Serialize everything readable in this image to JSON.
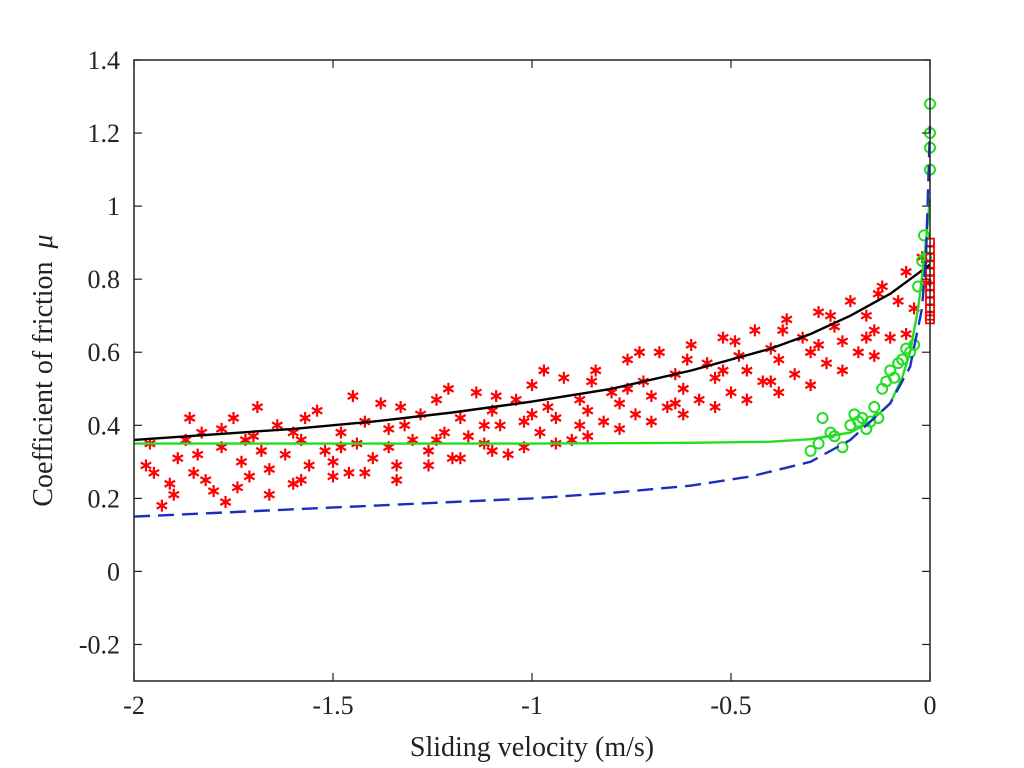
{
  "chart_data": {
    "type": "scatter",
    "xlabel": "Sliding velocity (m/s)",
    "ylabel": "Coefficient of friction",
    "ylabel_symbol": "μ",
    "xlim": [
      -2,
      0
    ],
    "ylim": [
      -0.3,
      1.4
    ],
    "xticks": [
      -2,
      -1.5,
      -1,
      -0.5,
      0
    ],
    "xtick_labels": [
      "-2",
      "-1.5",
      "-1",
      "-0.5",
      "0"
    ],
    "yticks": [
      -0.2,
      0,
      0.2,
      0.4,
      0.6,
      0.8,
      1,
      1.2,
      1.4
    ],
    "ytick_labels": [
      "-0.2",
      "0",
      "0.2",
      "0.4",
      "0.6",
      "0.8",
      "1",
      "1.2",
      "1.4"
    ],
    "grid": false,
    "colors": {
      "red_data": "#ff0000",
      "green_data": "#22dd22",
      "black_curve": "#000000",
      "green_curve": "#22dd22",
      "blue_curve": "#1a2fbf",
      "axes": "#222222"
    },
    "series": [
      {
        "marker": "asterisk",
        "color": "#ff0000",
        "points": [
          [
            -1.97,
            0.29
          ],
          [
            -1.95,
            0.27
          ],
          [
            -1.93,
            0.18
          ],
          [
            -1.91,
            0.24
          ],
          [
            -1.89,
            0.31
          ],
          [
            -1.87,
            0.36
          ],
          [
            -1.85,
            0.27
          ],
          [
            -1.83,
            0.38
          ],
          [
            -1.8,
            0.22
          ],
          [
            -1.78,
            0.34
          ],
          [
            -1.77,
            0.19
          ],
          [
            -1.75,
            0.42
          ],
          [
            -1.73,
            0.3
          ],
          [
            -1.71,
            0.26
          ],
          [
            -1.7,
            0.37
          ],
          [
            -1.68,
            0.33
          ],
          [
            -1.66,
            0.28
          ],
          [
            -1.64,
            0.4
          ],
          [
            -1.62,
            0.32
          ],
          [
            -1.6,
            0.24
          ],
          [
            -1.58,
            0.36
          ],
          [
            -1.56,
            0.29
          ],
          [
            -1.54,
            0.44
          ],
          [
            -1.52,
            0.33
          ],
          [
            -1.5,
            0.3
          ],
          [
            -1.48,
            0.38
          ],
          [
            -1.46,
            0.27
          ],
          [
            -1.44,
            0.35
          ],
          [
            -1.42,
            0.41
          ],
          [
            -1.4,
            0.31
          ],
          [
            -1.38,
            0.46
          ],
          [
            -1.36,
            0.34
          ],
          [
            -1.34,
            0.29
          ],
          [
            -1.32,
            0.4
          ],
          [
            -1.3,
            0.36
          ],
          [
            -1.28,
            0.43
          ],
          [
            -1.26,
            0.33
          ],
          [
            -1.24,
            0.47
          ],
          [
            -1.22,
            0.38
          ],
          [
            -1.2,
            0.31
          ],
          [
            -1.18,
            0.42
          ],
          [
            -1.16,
            0.37
          ],
          [
            -1.14,
            0.49
          ],
          [
            -1.12,
            0.35
          ],
          [
            -1.1,
            0.44
          ],
          [
            -1.08,
            0.4
          ],
          [
            -1.06,
            0.32
          ],
          [
            -1.04,
            0.47
          ],
          [
            -1.02,
            0.41
          ],
          [
            -1.0,
            0.51
          ],
          [
            -0.98,
            0.38
          ],
          [
            -0.96,
            0.45
          ],
          [
            -0.94,
            0.42
          ],
          [
            -0.92,
            0.53
          ],
          [
            -0.9,
            0.36
          ],
          [
            -0.88,
            0.47
          ],
          [
            -0.86,
            0.44
          ],
          [
            -0.84,
            0.55
          ],
          [
            -0.82,
            0.41
          ],
          [
            -0.8,
            0.49
          ],
          [
            -0.78,
            0.46
          ],
          [
            -0.76,
            0.58
          ],
          [
            -0.74,
            0.43
          ],
          [
            -0.72,
            0.52
          ],
          [
            -0.7,
            0.48
          ],
          [
            -0.68,
            0.6
          ],
          [
            -0.66,
            0.45
          ],
          [
            -0.64,
            0.54
          ],
          [
            -0.62,
            0.5
          ],
          [
            -0.6,
            0.62
          ],
          [
            -0.58,
            0.47
          ],
          [
            -0.56,
            0.57
          ],
          [
            -0.54,
            0.53
          ],
          [
            -0.52,
            0.64
          ],
          [
            -0.5,
            0.49
          ],
          [
            -0.48,
            0.59
          ],
          [
            -0.46,
            0.55
          ],
          [
            -0.44,
            0.66
          ],
          [
            -0.42,
            0.52
          ],
          [
            -0.4,
            0.61
          ],
          [
            -0.38,
            0.58
          ],
          [
            -0.36,
            0.69
          ],
          [
            -0.34,
            0.54
          ],
          [
            -0.32,
            0.64
          ],
          [
            -0.3,
            0.6
          ],
          [
            -0.28,
            0.71
          ],
          [
            -0.26,
            0.57
          ],
          [
            -0.24,
            0.67
          ],
          [
            -0.22,
            0.63
          ],
          [
            -0.2,
            0.74
          ],
          [
            -0.18,
            0.6
          ],
          [
            -0.16,
            0.7
          ],
          [
            -0.14,
            0.66
          ],
          [
            -0.12,
            0.78
          ],
          [
            -0.1,
            0.64
          ],
          [
            -0.08,
            0.74
          ],
          [
            -0.06,
            0.82
          ],
          [
            -0.04,
            0.72
          ],
          [
            -0.02,
            0.86
          ],
          [
            -0.01,
            0.79
          ],
          [
            -1.96,
            0.35
          ],
          [
            -1.84,
            0.32
          ],
          [
            -1.72,
            0.36
          ],
          [
            -1.6,
            0.38
          ],
          [
            -1.48,
            0.34
          ],
          [
            -1.36,
            0.39
          ],
          [
            -1.24,
            0.36
          ],
          [
            -1.12,
            0.4
          ],
          [
            -1.0,
            0.43
          ],
          [
            -0.88,
            0.4
          ],
          [
            -0.76,
            0.5
          ],
          [
            -0.64,
            0.46
          ],
          [
            -0.52,
            0.55
          ],
          [
            -0.4,
            0.52
          ],
          [
            -0.28,
            0.62
          ],
          [
            -0.16,
            0.64
          ],
          [
            -1.9,
            0.21
          ],
          [
            -1.82,
            0.25
          ],
          [
            -1.74,
            0.23
          ],
          [
            -1.66,
            0.21
          ],
          [
            -1.58,
            0.25
          ],
          [
            -1.5,
            0.26
          ],
          [
            -1.42,
            0.27
          ],
          [
            -1.34,
            0.25
          ],
          [
            -1.26,
            0.29
          ],
          [
            -1.18,
            0.31
          ],
          [
            -1.1,
            0.33
          ],
          [
            -1.02,
            0.34
          ],
          [
            -0.94,
            0.35
          ],
          [
            -0.86,
            0.37
          ],
          [
            -0.78,
            0.39
          ],
          [
            -0.7,
            0.41
          ],
          [
            -0.62,
            0.43
          ],
          [
            -0.54,
            0.45
          ],
          [
            -0.46,
            0.47
          ],
          [
            -0.38,
            0.49
          ],
          [
            -0.3,
            0.51
          ],
          [
            -0.22,
            0.55
          ],
          [
            -0.14,
            0.59
          ],
          [
            -0.06,
            0.65
          ],
          [
            -1.86,
            0.42
          ],
          [
            -1.78,
            0.39
          ],
          [
            -1.69,
            0.45
          ],
          [
            -1.57,
            0.42
          ],
          [
            -1.45,
            0.48
          ],
          [
            -1.33,
            0.45
          ],
          [
            -1.21,
            0.5
          ],
          [
            -1.09,
            0.48
          ],
          [
            -0.97,
            0.55
          ],
          [
            -0.85,
            0.52
          ],
          [
            -0.73,
            0.6
          ],
          [
            -0.61,
            0.58
          ],
          [
            -0.49,
            0.63
          ],
          [
            -0.37,
            0.66
          ],
          [
            -0.25,
            0.7
          ],
          [
            -0.13,
            0.76
          ]
        ]
      },
      {
        "marker": "circle",
        "color": "#22dd22",
        "points": [
          [
            -0.3,
            0.33
          ],
          [
            -0.28,
            0.35
          ],
          [
            -0.27,
            0.42
          ],
          [
            -0.25,
            0.38
          ],
          [
            -0.24,
            0.37
          ],
          [
            -0.22,
            0.34
          ],
          [
            -0.2,
            0.4
          ],
          [
            -0.19,
            0.43
          ],
          [
            -0.18,
            0.41
          ],
          [
            -0.17,
            0.42
          ],
          [
            -0.16,
            0.39
          ],
          [
            -0.15,
            0.41
          ],
          [
            -0.14,
            0.45
          ],
          [
            -0.13,
            0.42
          ],
          [
            -0.12,
            0.5
          ],
          [
            -0.11,
            0.52
          ],
          [
            -0.1,
            0.55
          ],
          [
            -0.09,
            0.53
          ],
          [
            -0.08,
            0.57
          ],
          [
            -0.07,
            0.58
          ],
          [
            -0.06,
            0.61
          ],
          [
            -0.05,
            0.6
          ],
          [
            -0.04,
            0.62
          ],
          [
            -0.03,
            0.78
          ],
          [
            -0.02,
            0.85
          ],
          [
            -0.015,
            0.92
          ],
          [
            -0.01,
            0.86
          ],
          [
            0.0,
            1.1
          ],
          [
            0.0,
            1.16
          ],
          [
            0.0,
            1.2
          ],
          [
            0.0,
            1.28
          ]
        ]
      },
      {
        "marker": "square",
        "color": "#ff0000",
        "points": [
          [
            0.0,
            0.69
          ],
          [
            0.0,
            0.7
          ],
          [
            0.0,
            0.72
          ],
          [
            0.0,
            0.74
          ],
          [
            0.0,
            0.76
          ],
          [
            0.0,
            0.78
          ],
          [
            0.0,
            0.8
          ],
          [
            0.0,
            0.82
          ],
          [
            0.0,
            0.84
          ],
          [
            0.0,
            0.86
          ],
          [
            0.0,
            0.88
          ],
          [
            0.0,
            0.9
          ]
        ]
      },
      {
        "line": "solid",
        "color": "#000000",
        "points": [
          [
            -2.0,
            0.36
          ],
          [
            -1.8,
            0.375
          ],
          [
            -1.6,
            0.39
          ],
          [
            -1.4,
            0.41
          ],
          [
            -1.2,
            0.435
          ],
          [
            -1.0,
            0.465
          ],
          [
            -0.8,
            0.5
          ],
          [
            -0.6,
            0.55
          ],
          [
            -0.4,
            0.61
          ],
          [
            -0.3,
            0.65
          ],
          [
            -0.2,
            0.7
          ],
          [
            -0.1,
            0.76
          ],
          [
            -0.05,
            0.8
          ],
          [
            0.0,
            0.84
          ]
        ]
      },
      {
        "line": "solid",
        "color": "#22dd22",
        "points": [
          [
            -2.0,
            0.35
          ],
          [
            -1.5,
            0.35
          ],
          [
            -1.0,
            0.35
          ],
          [
            -0.6,
            0.352
          ],
          [
            -0.4,
            0.355
          ],
          [
            -0.3,
            0.362
          ],
          [
            -0.2,
            0.38
          ],
          [
            -0.15,
            0.41
          ],
          [
            -0.1,
            0.46
          ],
          [
            -0.07,
            0.53
          ],
          [
            -0.05,
            0.6
          ],
          [
            -0.03,
            0.72
          ],
          [
            -0.015,
            0.85
          ],
          [
            0.0,
            1.02
          ]
        ]
      },
      {
        "line": "dashed",
        "color": "#1a2fbf",
        "points": [
          [
            -2.0,
            0.15
          ],
          [
            -1.8,
            0.16
          ],
          [
            -1.6,
            0.17
          ],
          [
            -1.4,
            0.18
          ],
          [
            -1.2,
            0.19
          ],
          [
            -1.0,
            0.2
          ],
          [
            -0.8,
            0.215
          ],
          [
            -0.6,
            0.235
          ],
          [
            -0.45,
            0.26
          ],
          [
            -0.3,
            0.3
          ],
          [
            -0.2,
            0.36
          ],
          [
            -0.1,
            0.46
          ],
          [
            -0.05,
            0.56
          ],
          [
            -0.02,
            0.72
          ],
          [
            -0.01,
            0.86
          ],
          [
            0.0,
            1.22
          ]
        ]
      }
    ]
  }
}
